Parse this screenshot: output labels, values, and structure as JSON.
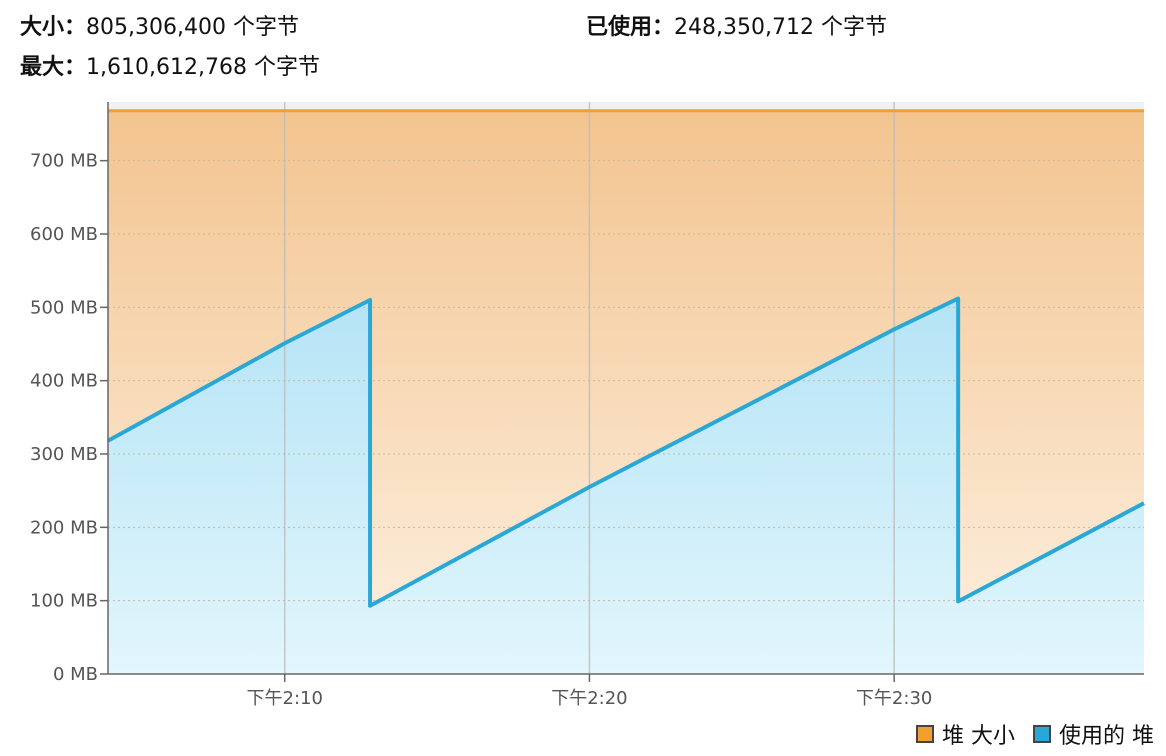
{
  "stats": {
    "size_label": "大小：",
    "size_value": "805,306,400 个字节",
    "used_label": "已使用：",
    "used_value": "248,350,712 个字节",
    "max_label": "最大：",
    "max_value": "1,610,612,768 个字节"
  },
  "colors": {
    "heap_size": "#f0a030",
    "used_heap": "#29a8d8"
  },
  "chart_data": {
    "type": "area",
    "title": "",
    "xlabel": "",
    "ylabel": "",
    "ylim": [
      0,
      780
    ],
    "xlim": [
      "14:04:12",
      "14:38:12"
    ],
    "y_ticks": [
      "0 MB",
      "100 MB",
      "200 MB",
      "300 MB",
      "400 MB",
      "500 MB",
      "600 MB",
      "700 MB"
    ],
    "x_ticks": [
      {
        "t": "14:10",
        "label": "下午2:10"
      },
      {
        "t": "14:20",
        "label": "下午2:20"
      },
      {
        "t": "14:30",
        "label": "下午2:30"
      }
    ],
    "grid": true,
    "legend_position": "bottom-right",
    "series": [
      {
        "name": "堆 大小",
        "points": [
          [
            "14:04:12",
            768
          ],
          [
            "14:38:12",
            768
          ]
        ]
      },
      {
        "name": "使用的 堆",
        "points": [
          [
            "14:04:12",
            318
          ],
          [
            "14:10:00",
            451
          ],
          [
            "14:12:48",
            510
          ],
          [
            "14:12:48",
            93
          ],
          [
            "14:20:00",
            255
          ],
          [
            "14:30:00",
            470
          ],
          [
            "14:32:06",
            512
          ],
          [
            "14:32:06",
            99
          ],
          [
            "14:38:12",
            233
          ]
        ]
      }
    ]
  },
  "legend": {
    "heap_size": "堆 大小",
    "used_heap": "使用的 堆"
  }
}
